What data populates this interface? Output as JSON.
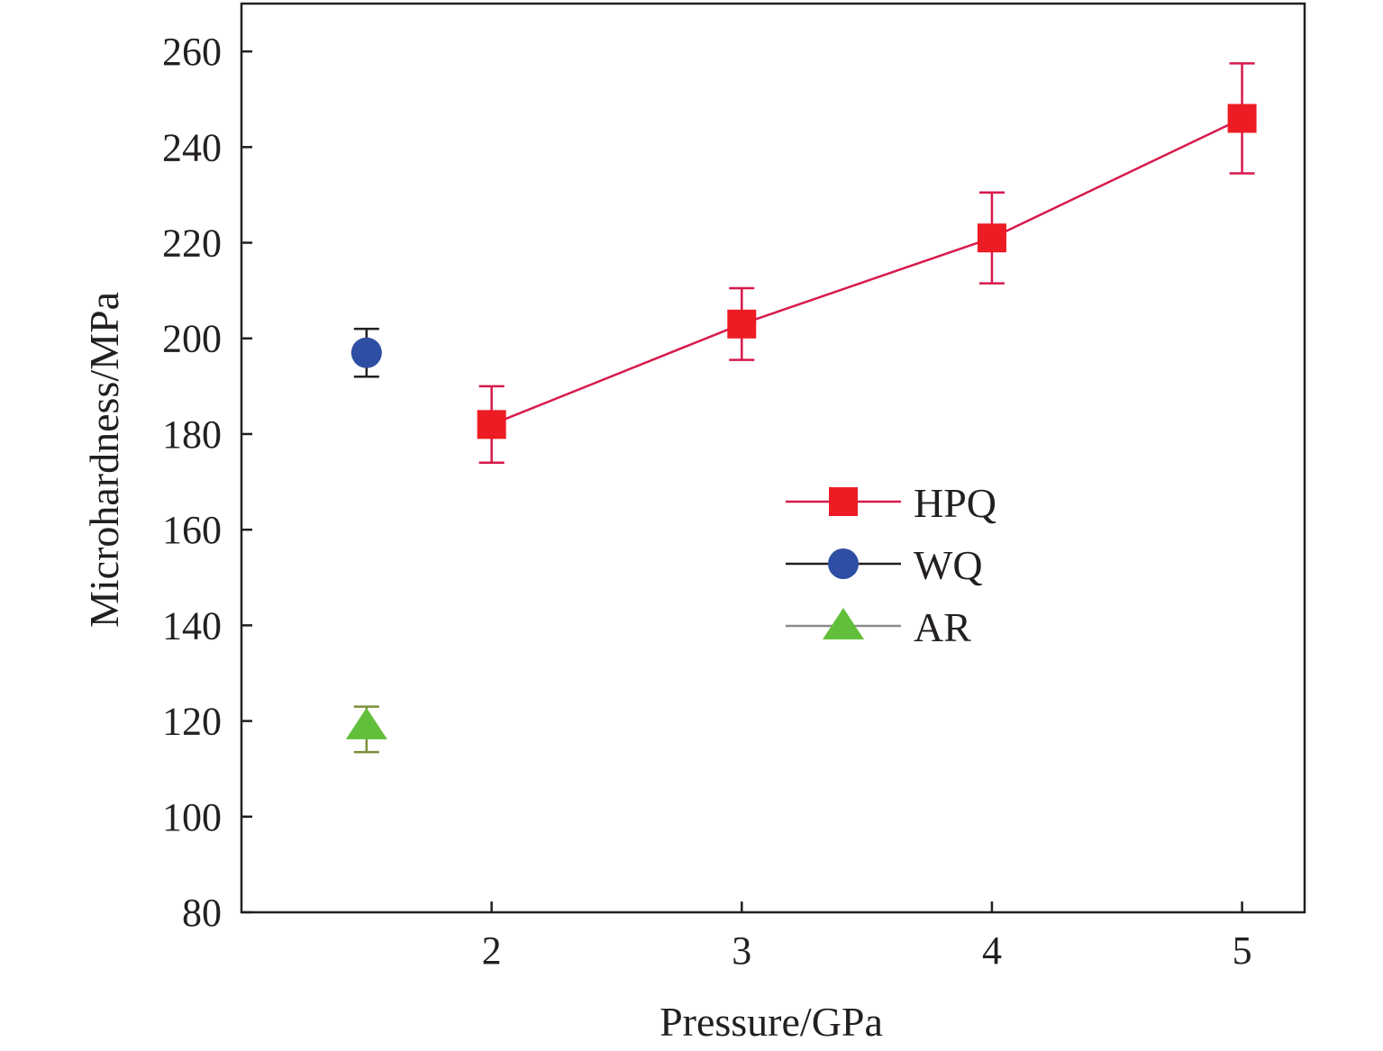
{
  "chart_data": {
    "type": "scatter",
    "title": "",
    "xlabel": "Pressure/GPa",
    "ylabel": "Microhardness/MPa",
    "xlim": [
      1,
      5.25
    ],
    "ylim": [
      80,
      270
    ],
    "xticks": [
      2,
      3,
      4,
      5
    ],
    "yticks": [
      80,
      100,
      120,
      140,
      160,
      180,
      200,
      220,
      240,
      260
    ],
    "grid": false,
    "legend_position": "center-right",
    "series": [
      {
        "name": "HPQ",
        "marker": "square",
        "color": "#ed1c24",
        "line_color": "#d7194b",
        "connected": true,
        "x": [
          2,
          3,
          4,
          5
        ],
        "y": [
          182,
          203,
          221,
          246
        ],
        "err_low": [
          174,
          195.5,
          211.5,
          234.5
        ],
        "err_high": [
          190,
          210.5,
          230.5,
          257.5
        ]
      },
      {
        "name": "WQ",
        "marker": "circle",
        "color": "#2e4ea3",
        "line_color": "#231f20",
        "connected": false,
        "x": [
          1.5
        ],
        "y": [
          197
        ],
        "err_low": [
          192
        ],
        "err_high": [
          202
        ]
      },
      {
        "name": "AR",
        "marker": "triangle",
        "color": "#62bf3b",
        "line_color": "#8c8c8c",
        "connected": false,
        "x": [
          1.5
        ],
        "y": [
          119
        ],
        "err_low": [
          113.5
        ],
        "err_high": [
          123
        ]
      }
    ]
  }
}
